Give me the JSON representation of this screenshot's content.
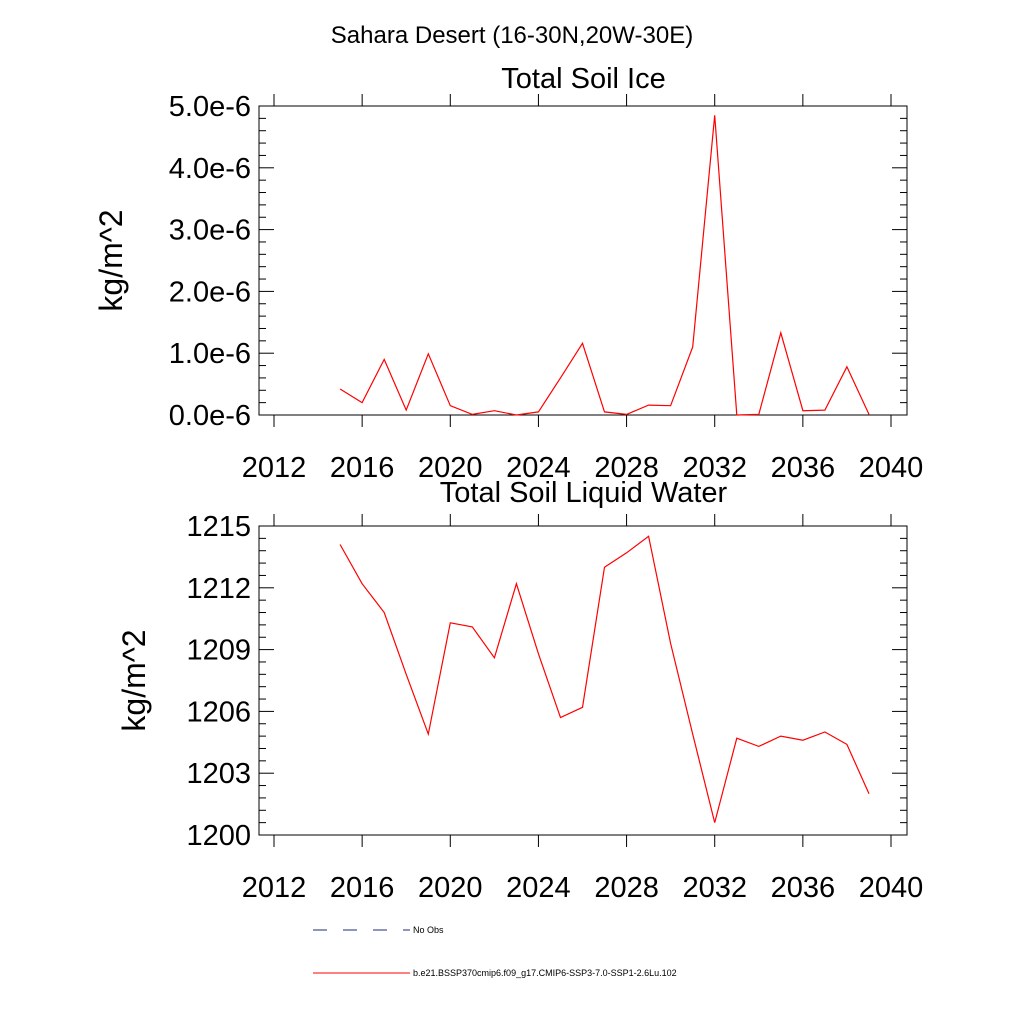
{
  "figure": {
    "title": "Sahara Desert (16-30N,20W-30E)"
  },
  "legend": {
    "entries": [
      {
        "label": "No Obs",
        "color": "#1f2a7a",
        "style": "dashed"
      },
      {
        "label": "b.e21.BSSP370cmip6.f09_g17.CMIP6-SSP3-7.0-SSP1-2.6Lu.102",
        "color": "#ff0000",
        "style": "solid"
      }
    ]
  },
  "chart_data": [
    {
      "type": "line",
      "title": "Total Soil Ice",
      "xlabel": "",
      "ylabel": "kg/m^2",
      "xlim": [
        2012,
        2040
      ],
      "ylim": [
        0,
        5e-06
      ],
      "xticks": [
        2012,
        2016,
        2020,
        2024,
        2028,
        2032,
        2036,
        2040
      ],
      "xticklabels": [
        "2012",
        "2016",
        "2020",
        "2024",
        "2028",
        "2032",
        "2036",
        "2040"
      ],
      "yticks": [
        0,
        1e-06,
        2e-06,
        3e-06,
        4e-06,
        5e-06
      ],
      "yticklabels": [
        "0.0e-6",
        "1.0e-6",
        "2.0e-6",
        "3.0e-6",
        "4.0e-6",
        "5.0e-6"
      ],
      "series": [
        {
          "name": "b.e21.BSSP370cmip6.f09_g17.CMIP6-SSP3-7.0-SSP1-2.6Lu.102",
          "color": "#ff0000",
          "x": [
            2015,
            2016,
            2017,
            2018,
            2019,
            2020,
            2021,
            2022,
            2023,
            2024,
            2025,
            2026,
            2027,
            2028,
            2029,
            2030,
            2031,
            2032,
            2033,
            2034,
            2035,
            2036,
            2037,
            2038,
            2039
          ],
          "y": [
            4.2e-07,
            2e-07,
            9e-07,
            8e-08,
            9.9e-07,
            1.5e-07,
            1e-08,
            7e-08,
            0.0,
            5e-08,
            6e-07,
            1.16e-06,
            5e-08,
            1e-08,
            1.6e-07,
            1.5e-07,
            1.1e-06,
            4.85e-06,
            0.0,
            1e-08,
            1.33e-06,
            7e-08,
            8e-08,
            7.8e-07,
            1e-08
          ]
        }
      ]
    },
    {
      "type": "line",
      "title": "Total Soil Liquid Water",
      "xlabel": "",
      "ylabel": "kg/m^2",
      "xlim": [
        2012,
        2040
      ],
      "ylim": [
        1200,
        1215
      ],
      "xticks": [
        2012,
        2016,
        2020,
        2024,
        2028,
        2032,
        2036,
        2040
      ],
      "xticklabels": [
        "2012",
        "2016",
        "2020",
        "2024",
        "2028",
        "2032",
        "2036",
        "2040"
      ],
      "yticks": [
        1200,
        1203,
        1206,
        1209,
        1212,
        1215
      ],
      "yticklabels": [
        "1200",
        "1203",
        "1206",
        "1209",
        "1212",
        "1215"
      ],
      "series": [
        {
          "name": "b.e21.BSSP370cmip6.f09_g17.CMIP6-SSP3-7.0-SSP1-2.6Lu.102",
          "color": "#ff0000",
          "x": [
            2015,
            2016,
            2017,
            2018,
            2019,
            2020,
            2021,
            2022,
            2023,
            2024,
            2025,
            2026,
            2027,
            2028,
            2029,
            2030,
            2031,
            2032,
            2033,
            2034,
            2035,
            2036,
            2037,
            2038,
            2039
          ],
          "y": [
            1214.1,
            1212.2,
            1210.8,
            1207.8,
            1204.9,
            1210.3,
            1210.1,
            1208.6,
            1212.2,
            1208.8,
            1205.7,
            1206.2,
            1213.0,
            1213.7,
            1214.5,
            1209.3,
            1204.9,
            1200.6,
            1204.7,
            1204.3,
            1204.8,
            1204.6,
            1205.0,
            1204.4,
            1202.0
          ]
        }
      ]
    }
  ]
}
